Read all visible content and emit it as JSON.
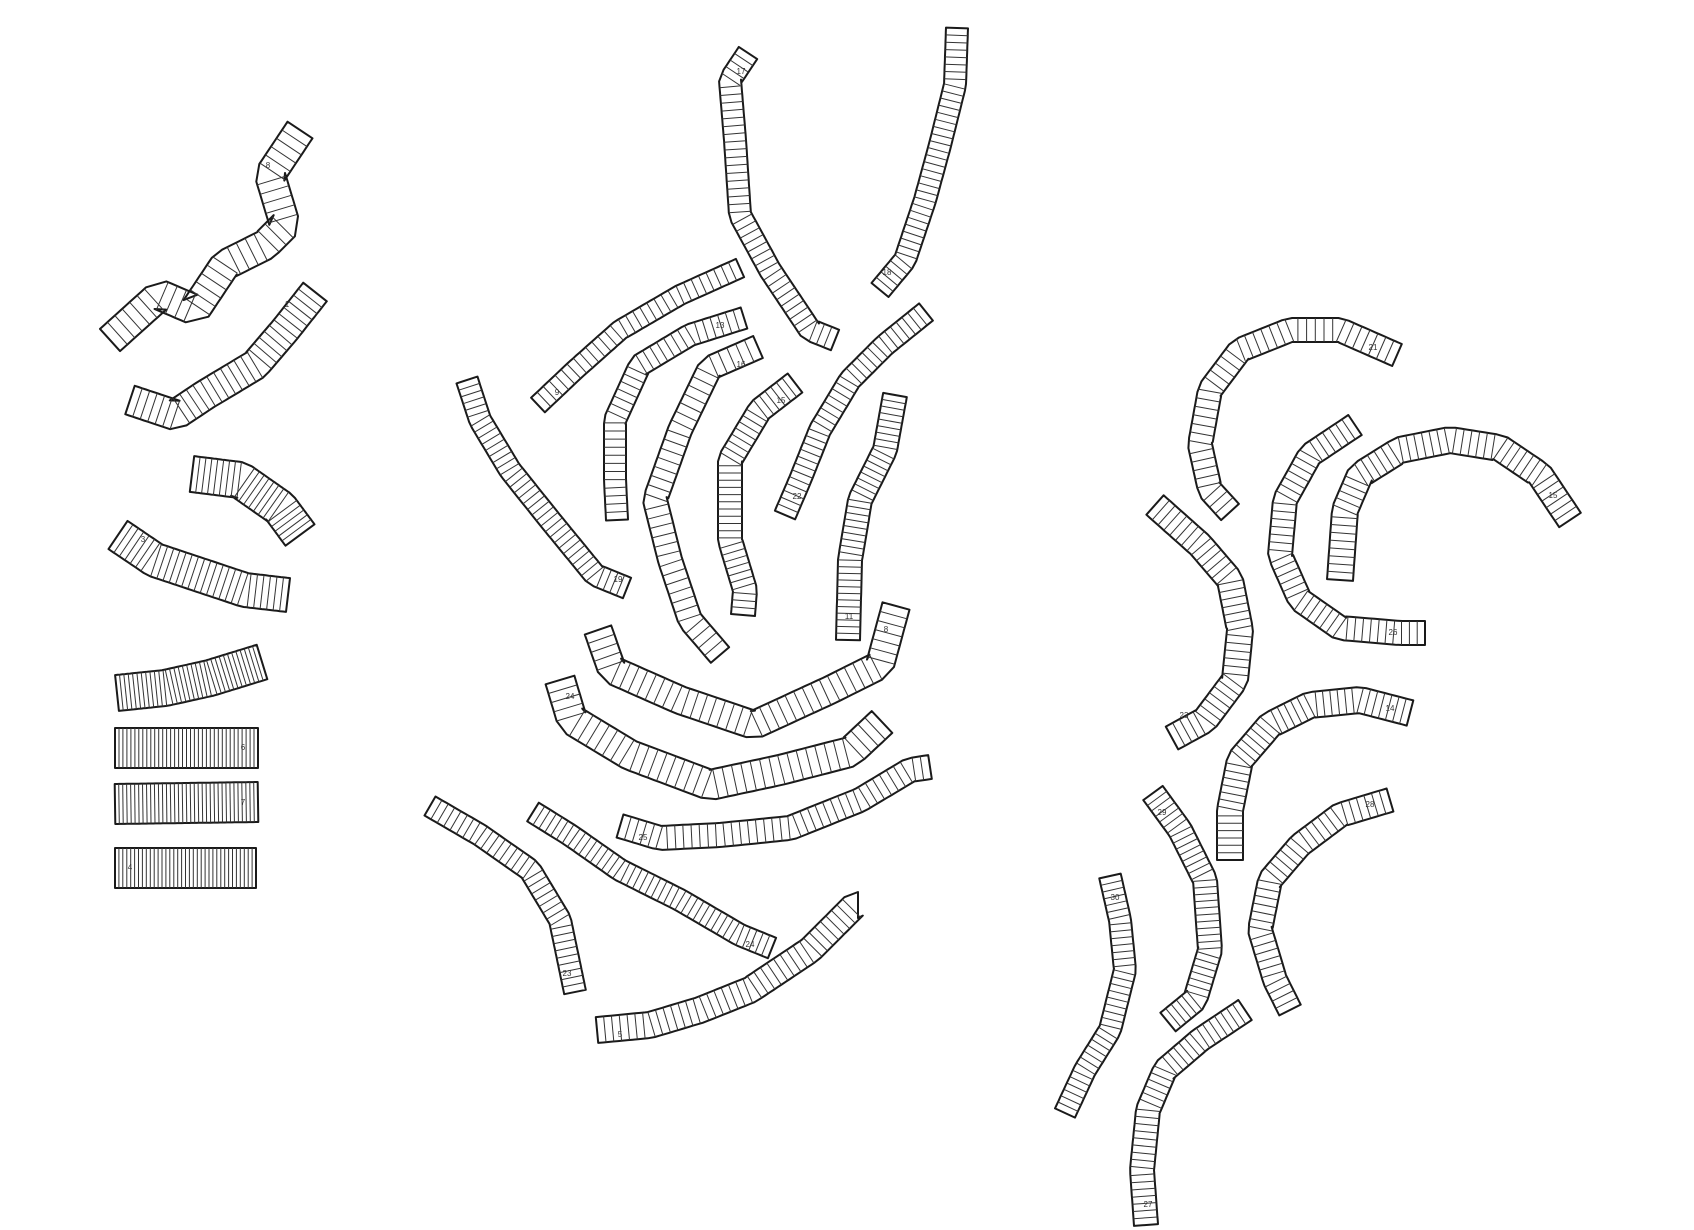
{
  "diagram": {
    "description_visible": "",
    "stroke_color": "#1a1a1a",
    "fill_color": "#ffffff",
    "strips": [
      {
        "id": "s-a1",
        "label": "8"
      },
      {
        "id": "s-a2",
        "label": "1"
      },
      {
        "id": "s-a3",
        "label": ""
      },
      {
        "id": "s-a4",
        "label": "3"
      },
      {
        "id": "s-a5",
        "label": ""
      },
      {
        "id": "s-a6",
        "label": "6"
      },
      {
        "id": "s-a7",
        "label": "7"
      },
      {
        "id": "s-a8",
        "label": "4"
      },
      {
        "id": "s-b1",
        "label": "17"
      },
      {
        "id": "s-b2",
        "label": "18"
      },
      {
        "id": "s-b3",
        "label": "9"
      },
      {
        "id": "s-b4",
        "label": "13"
      },
      {
        "id": "s-b5",
        "label": "16"
      },
      {
        "id": "s-b6",
        "label": "15"
      },
      {
        "id": "s-b7",
        "label": "22"
      },
      {
        "id": "s-b8",
        "label": "19"
      },
      {
        "id": "s-b9",
        "label": ""
      },
      {
        "id": "s-b10",
        "label": "11"
      },
      {
        "id": "s-b11",
        "label": "8"
      },
      {
        "id": "s-b12",
        "label": "24"
      },
      {
        "id": "s-b13",
        "label": "25"
      },
      {
        "id": "s-b14",
        "label": "23"
      },
      {
        "id": "s-b15",
        "label": "24"
      },
      {
        "id": "s-b16",
        "label": "5"
      },
      {
        "id": "s-c1",
        "label": "21"
      },
      {
        "id": "s-c2",
        "label": "26"
      },
      {
        "id": "s-c3",
        "label": "15"
      },
      {
        "id": "s-c4",
        "label": "23"
      },
      {
        "id": "s-c5",
        "label": "14"
      },
      {
        "id": "s-c6",
        "label": "29"
      },
      {
        "id": "s-c7",
        "label": "28"
      },
      {
        "id": "s-c8",
        "label": "30"
      },
      {
        "id": "s-c9",
        "label": "27"
      }
    ]
  }
}
